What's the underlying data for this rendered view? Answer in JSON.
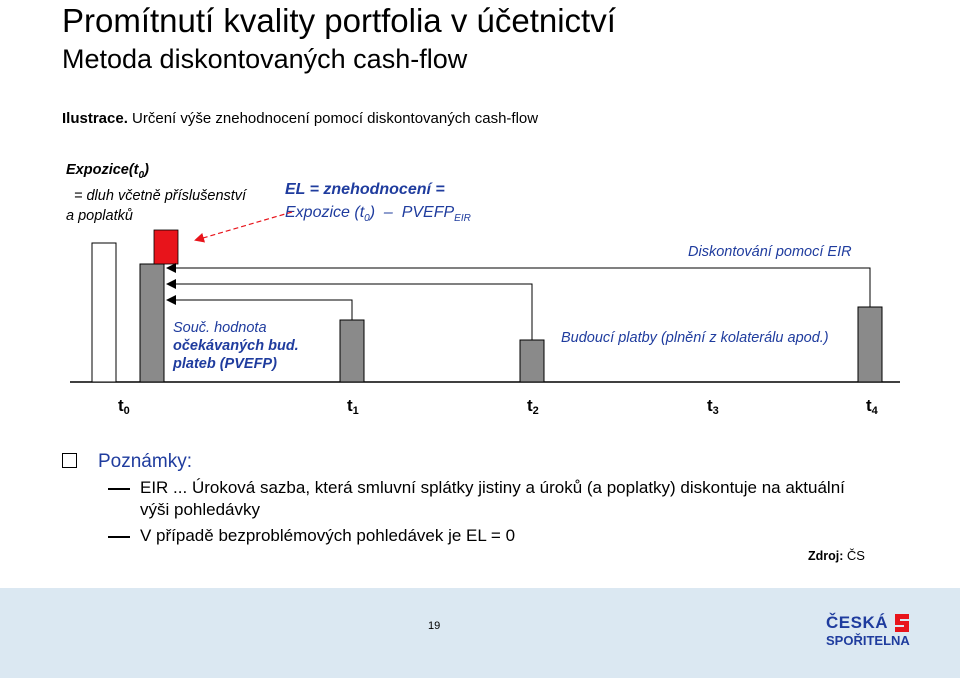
{
  "title": "Promítnutí kvality portfolia v účetnictví",
  "subtitle": "Metoda diskontovaných cash-flow",
  "illustration": {
    "label": "Ilustrace.",
    "text": " Určení výše znehodnocení pomocí diskontovaných cash-flow"
  },
  "exposure": {
    "head": "Expozice(t",
    "head_sub": "0",
    "head_end": ")",
    "line2": "= dluh včetně příslušenství",
    "line3": "a poplatků"
  },
  "el_formula": {
    "line1": "EL = znehodnocení =",
    "line2a": "Expozice (t",
    "line2_sub": "0",
    "line2b": ")  –  PVEFP",
    "line2_sub2": "EIR"
  },
  "discount_label": "Diskontování pomocí EIR",
  "pvefp_label": {
    "l1": "Souč. hodnota",
    "l2": "očekávaných bud.",
    "l3": "plateb (PVEFP)"
  },
  "future_label": "Budoucí platby (plnění z kolaterálu apod.)",
  "timeline": [
    {
      "t": "t",
      "sub": "0"
    },
    {
      "t": "t",
      "sub": "1"
    },
    {
      "t": "t",
      "sub": "2"
    },
    {
      "t": "t",
      "sub": "3"
    },
    {
      "t": "t",
      "sub": "4"
    }
  ],
  "notes": {
    "head": "Poznámky:",
    "eir_l1": "EIR ... Úroková sazba, která smluvní splátky jistiny a úroků (a poplatky) diskontuje na aktuální",
    "eir_l2": "výši pohledávky",
    "el_zero": "V případě bezproblémových pohledávek je EL = 0"
  },
  "source": {
    "label": "Zdroj:",
    "value": "ČS"
  },
  "page_number": "19",
  "logo": {
    "l1": "ČESKÁ",
    "l2": "SPOŘITELNA"
  },
  "colors": {
    "accent_blue": "#1f3c9e",
    "red_bar": "#e8141b",
    "gray_bar": "#8a8a8a",
    "footer_bg": "#dbe8f2"
  }
}
